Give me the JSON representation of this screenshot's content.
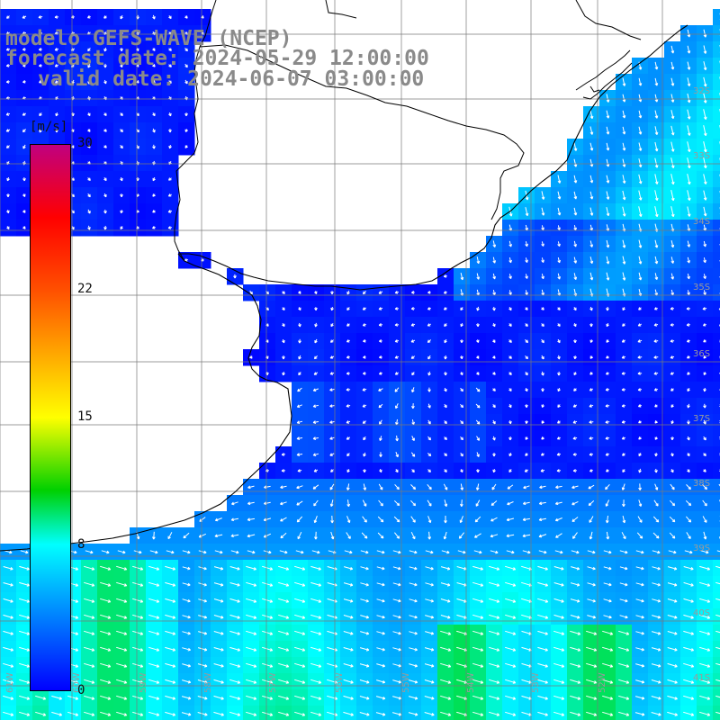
{
  "title": {
    "line1": "modelo GEFS-WAVE (NCEP)",
    "line2": "forecast date: 2024-05-29 12:00:00",
    "line3": "valid date: 2024-06-07 03:00:00"
  },
  "colorbar": {
    "unit": "[m/s]",
    "ticks": [
      {
        "value": 30,
        "label": "30"
      },
      {
        "value": 22,
        "label": "22"
      },
      {
        "value": 15,
        "label": "15"
      },
      {
        "value": 8,
        "label": "8"
      },
      {
        "value": 0,
        "label": "0"
      }
    ],
    "stops": [
      {
        "value": 0,
        "color": "#0000ff"
      },
      {
        "value": 8,
        "color": "#00ffff"
      },
      {
        "value": 11,
        "color": "#00d000"
      },
      {
        "value": 15,
        "color": "#ffff00"
      },
      {
        "value": 22,
        "color": "#ff5000"
      },
      {
        "value": 26,
        "color": "#ff0000"
      },
      {
        "value": 30,
        "color": "#c00080"
      }
    ]
  },
  "lat_labels": [
    "32S",
    "33S",
    "34S",
    "35S",
    "36S",
    "37S",
    "38S",
    "39S",
    "40S",
    "41S"
  ],
  "lon_labels": [
    "61W",
    "60W",
    "59W",
    "58W",
    "57W",
    "56W",
    "55W",
    "54W",
    "53W",
    "52W"
  ],
  "colors": {
    "land": "#ffffff",
    "coast": "#000000",
    "grid": "#7a7a7a",
    "arrow": "#ffffff"
  }
}
